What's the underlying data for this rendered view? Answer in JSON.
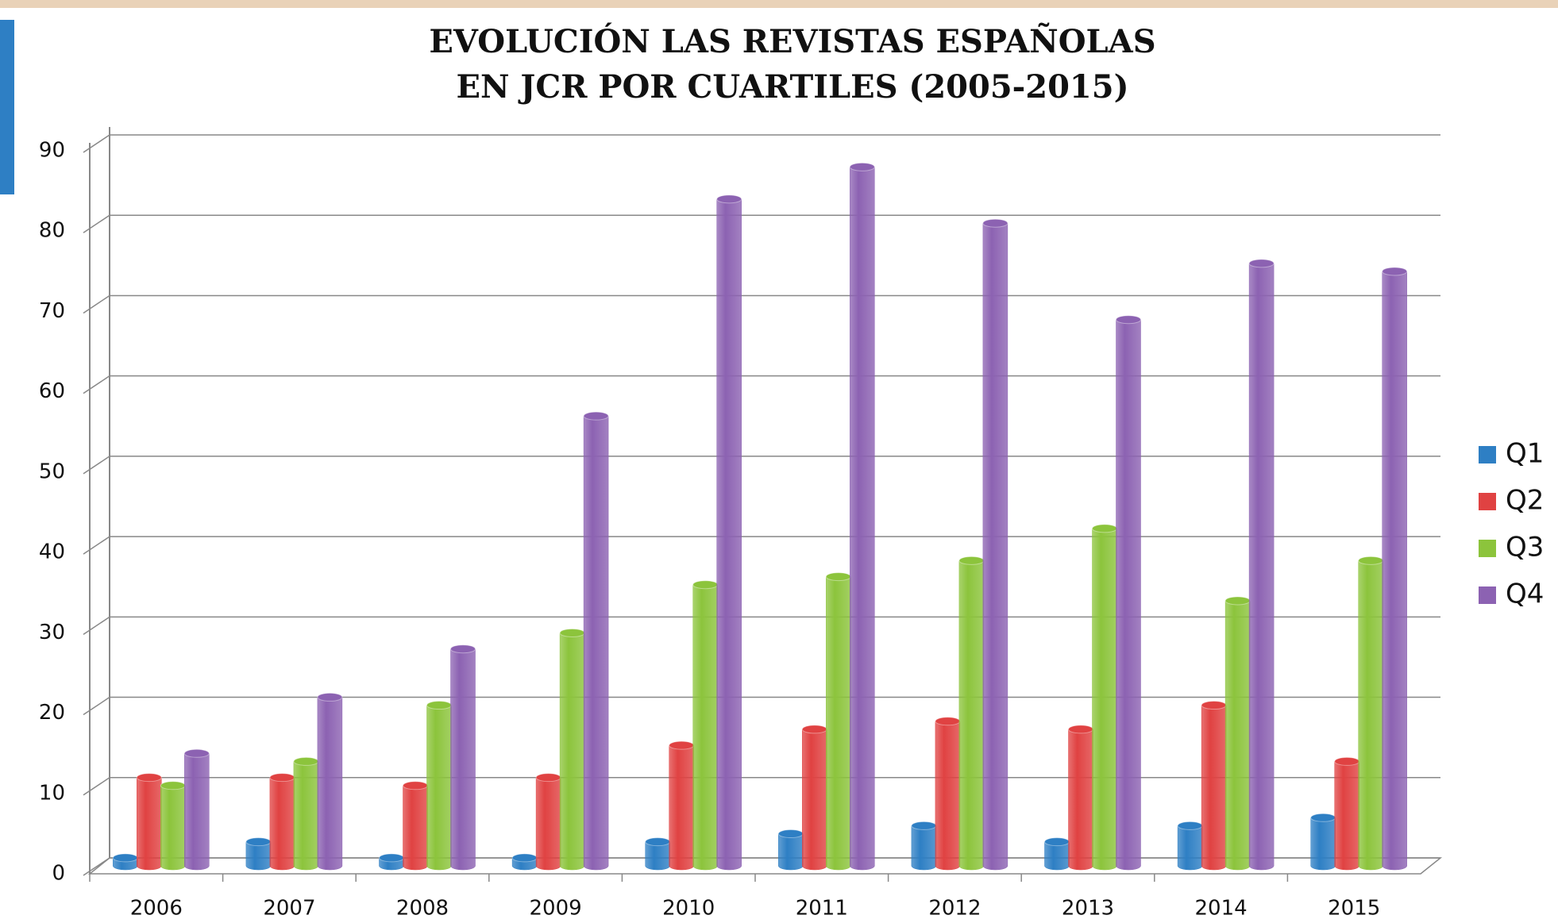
{
  "chart_data": {
    "type": "bar",
    "title": [
      "EVOLUCIÓN LAS  REVISTAS ESPAÑOLAS",
      "EN JCR POR CUARTILES (2005-2015)"
    ],
    "categories": [
      "2006",
      "2007",
      "2008",
      "2009",
      "2010",
      "2011",
      "2012",
      "2013",
      "2014",
      "2015"
    ],
    "series": [
      {
        "name": "Q1",
        "color": "#2e7fc4",
        "values": [
          1,
          3,
          1,
          1,
          3,
          4,
          5,
          3,
          5,
          6
        ]
      },
      {
        "name": "Q2",
        "color": "#e04242",
        "values": [
          11,
          11,
          10,
          11,
          15,
          17,
          18,
          17,
          20,
          13
        ]
      },
      {
        "name": "Q3",
        "color": "#8cc43c",
        "values": [
          10,
          13,
          20,
          29,
          35,
          36,
          38,
          42,
          33,
          38
        ]
      },
      {
        "name": "Q4",
        "color": "#8c62b2",
        "values": [
          14,
          21,
          27,
          56,
          83,
          87,
          80,
          68,
          75,
          74
        ]
      }
    ],
    "ylim": [
      0,
      90
    ],
    "yticks": [
      0,
      10,
      20,
      30,
      40,
      50,
      60,
      70,
      80,
      90
    ],
    "grid": true,
    "legend": "right"
  }
}
